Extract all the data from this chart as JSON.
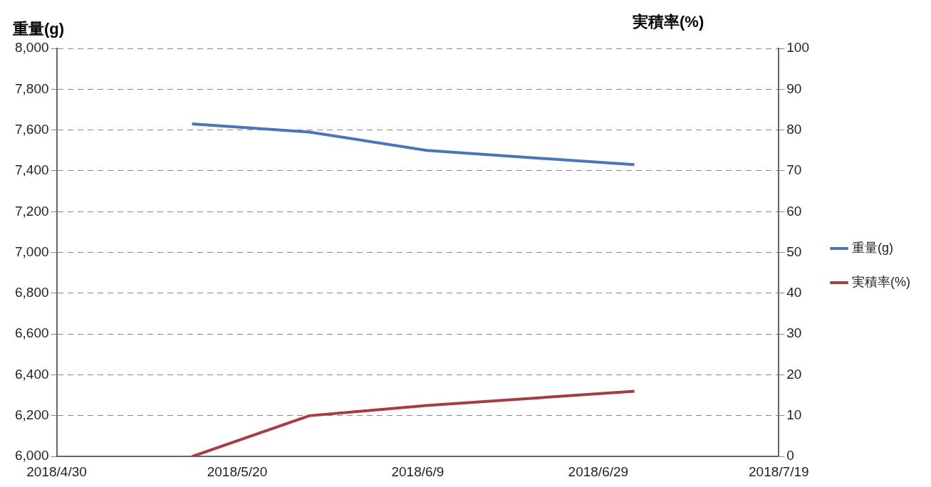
{
  "chart_data": {
    "type": "line",
    "ylabel": "重量(g)",
    "y2label": "実積率(%)",
    "x": [
      "2018-05-15",
      "2018-05-28",
      "2018-06-10",
      "2018-07-03"
    ],
    "series": [
      {
        "name": "重量(g)",
        "color": "#4a76b8",
        "values": [
          7630,
          7590,
          7500,
          7430
        ]
      },
      {
        "name": "実積率(%)",
        "color": "#a83c44",
        "axis": "y2",
        "values": [
          0,
          10,
          12.5,
          16
        ]
      }
    ],
    "xlim": [
      "2018-04-30",
      "2018-07-19"
    ],
    "xticks": [
      {
        "value": "2018-04-30",
        "label": "2018/4/30"
      },
      {
        "value": "2018-05-20",
        "label": "2018/5/20"
      },
      {
        "value": "2018-06-09",
        "label": "2018/6/9"
      },
      {
        "value": "2018-06-29",
        "label": "2018/6/29"
      },
      {
        "value": "2018-07-19",
        "label": "2018/7/19"
      }
    ],
    "ylim": [
      6000,
      8000
    ],
    "yticks": [
      {
        "value": 6000,
        "label": "6,000"
      },
      {
        "value": 6200,
        "label": "6,200"
      },
      {
        "value": 6400,
        "label": "6,400"
      },
      {
        "value": 6600,
        "label": "6,600"
      },
      {
        "value": 6800,
        "label": "6,800"
      },
      {
        "value": 7000,
        "label": "7,000"
      },
      {
        "value": 7200,
        "label": "7,200"
      },
      {
        "value": 7400,
        "label": "7,400"
      },
      {
        "value": 7600,
        "label": "7,600"
      },
      {
        "value": 7800,
        "label": "7,800"
      },
      {
        "value": 8000,
        "label": "8,000"
      }
    ],
    "y2lim": [
      0,
      100
    ],
    "y2ticks": [
      0,
      10,
      20,
      30,
      40,
      50,
      60,
      70,
      80,
      90,
      100
    ],
    "grid": "y",
    "legend": "right",
    "marker": "none",
    "line_style": "solid"
  }
}
